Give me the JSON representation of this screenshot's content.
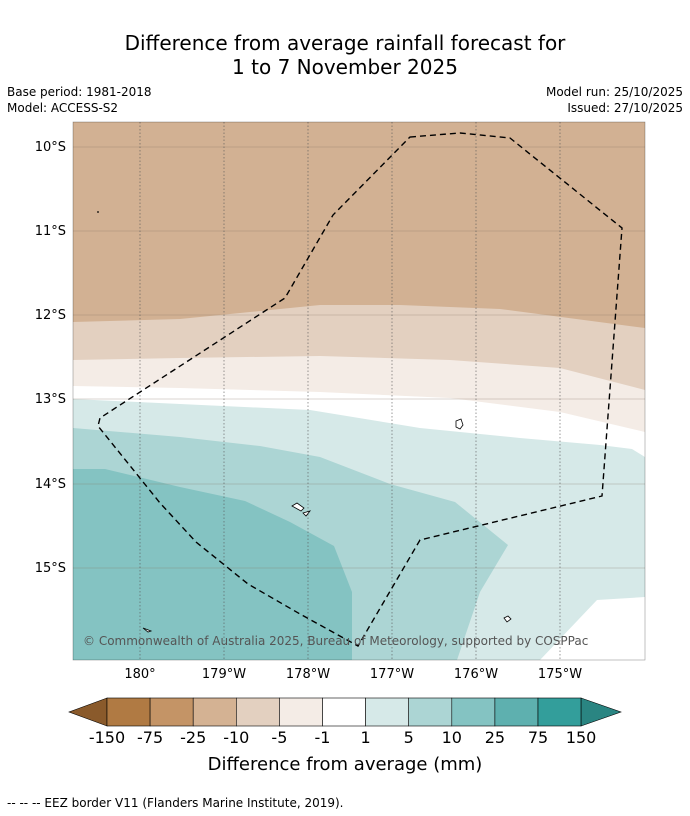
{
  "title_line1": "Difference from average rainfall forecast for",
  "title_line2": "1 to 7 November 2025",
  "base_period": "Base period: 1981-2018",
  "model": "Model: ACCESS-S2",
  "model_run": "Model run: 25/10/2025",
  "issued": "Issued: 27/10/2025",
  "lat_labels": [
    "10°S",
    "11°S",
    "12°S",
    "13°S",
    "14°S",
    "15°S"
  ],
  "lon_labels": [
    "180°",
    "179°W",
    "178°W",
    "177°W",
    "176°W",
    "175°W"
  ],
  "copyright": "© Commonwealth of Australia 2025, Bureau of Meteorology, supported by COSPPac",
  "colorbar": {
    "ticks": [
      "-150",
      "-75",
      "-25",
      "-10",
      "-5",
      "-1",
      "1",
      "5",
      "10",
      "25",
      "75",
      "150"
    ],
    "colors": [
      "#8a5a2b",
      "#b07a43",
      "#c49466",
      "#d4b293",
      "#e3d0c0",
      "#f4ece6",
      "#ffffff",
      "#d6e9e8",
      "#acd5d4",
      "#84c3c2",
      "#5eb0af",
      "#339e9b",
      "#2a8582"
    ],
    "label": "Difference from average (mm)"
  },
  "footer": "-- -- -- EEZ border V11 (Flanders Marine Institute, 2019)."
}
